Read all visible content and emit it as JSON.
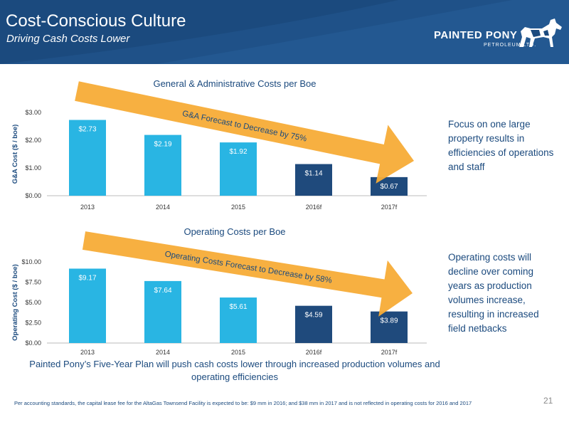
{
  "header": {
    "title": "Cost-Conscious Culture",
    "subtitle": "Driving Cash Costs Lower",
    "logo_name": "PAINTED PONY",
    "logo_sub": "PETROLEUM LTD."
  },
  "colors": {
    "header_bg": "#1b4a7e",
    "bar_actual": "#29b5e3",
    "bar_forecast": "#1f4a7c",
    "arrow": "#f7ac37",
    "text_navy": "#1b4a7e"
  },
  "chart_data": [
    {
      "type": "bar",
      "title": "General & Administrative Costs per Boe",
      "ylabel": "G&A Cost ($ / boe)",
      "categories": [
        "2013",
        "2014",
        "2015",
        "2016f",
        "2017f"
      ],
      "values": [
        2.73,
        2.19,
        1.92,
        1.14,
        0.67
      ],
      "data_labels": [
        "$2.73",
        "$2.19",
        "$1.92",
        "$1.14",
        "$0.67"
      ],
      "forecast": [
        false,
        false,
        false,
        true,
        true
      ],
      "ylim": [
        0,
        3
      ],
      "yticks": [
        0,
        1,
        2,
        3
      ],
      "ytick_labels": [
        "$0.00",
        "$1.00",
        "$2.00",
        "$3.00"
      ],
      "annotation": "G&A Forecast to Decrease by 75%",
      "grid": false
    },
    {
      "type": "bar",
      "title": "Operating Costs per Boe",
      "ylabel": "Operating Cost ($ / boe)",
      "categories": [
        "2013",
        "2014",
        "2015",
        "2016f",
        "2017f"
      ],
      "values": [
        9.17,
        7.64,
        5.61,
        4.59,
        3.89
      ],
      "data_labels": [
        "$9.17",
        "$7.64",
        "$5.61",
        "$4.59",
        "$3.89"
      ],
      "forecast": [
        false,
        false,
        false,
        true,
        true
      ],
      "ylim": [
        0,
        10
      ],
      "yticks": [
        0,
        2.5,
        5,
        7.5,
        10
      ],
      "ytick_labels": [
        "$0.00",
        "$2.50",
        "$5.00",
        "$7.50",
        "$10.00"
      ],
      "annotation": "Operating Costs Forecast to Decrease by 58%",
      "grid": false
    }
  ],
  "side_text": {
    "ga": "Focus on one large property results in efficiencies of operations and staff",
    "opex": "Operating costs will decline over coming years as production volumes increase, resulting in increased field netbacks"
  },
  "caption": "Painted Pony’s Five-Year Plan will push cash costs lower through increased production volumes and operating efficiencies",
  "footnote": "Per accounting standards, the capital lease fee for the AltaGas Townsend Facility is expected to be: $9 mm in 2016; and $38 mm in 2017 and is not reflected in operating costs for 2016 and 2017",
  "page_number": "21"
}
